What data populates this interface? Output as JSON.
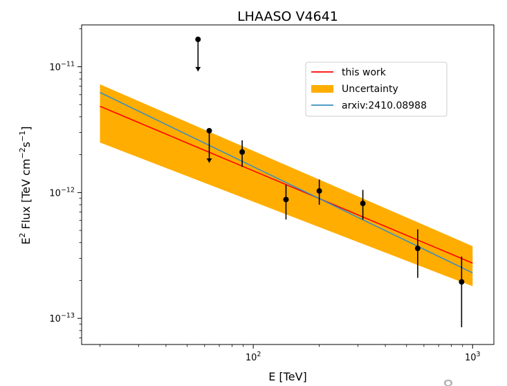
{
  "chart_data": {
    "type": "line",
    "title": "LHAASO V4641",
    "xlabel": "E [TeV]",
    "ylabel_main": "E",
    "ylabel_tail": "Flux [TeV cm",
    "ylabel_units_end": "]",
    "xscale": "log",
    "yscale": "log",
    "xlim": [
      16.5,
      1250
    ],
    "ylim": [
      6.2e-14,
      2.15e-11
    ],
    "x_ticks": [
      {
        "value": 100,
        "base": "10",
        "exp": "2"
      },
      {
        "value": 1000,
        "base": "10",
        "exp": "3"
      }
    ],
    "y_ticks": [
      {
        "value": 1e-11,
        "base": "10",
        "exp": "−11"
      },
      {
        "value": 1e-12,
        "base": "10",
        "exp": "−12"
      },
      {
        "value": 1e-13,
        "base": "10",
        "exp": "−13"
      }
    ],
    "grid": false,
    "legend_position": "upper-right",
    "series": [
      {
        "name": "this work",
        "kind": "line",
        "color": "#ff0000",
        "x": [
          20,
          1000
        ],
        "y": [
          4.85e-12,
          2.75e-13
        ]
      },
      {
        "name": "Uncertainty",
        "kind": "band",
        "color": "#ffad00",
        "x": [
          20,
          1000
        ],
        "y_upper": [
          7.25e-12,
          3.75e-13
        ],
        "y_lower": [
          2.5e-12,
          1.8e-13
        ]
      },
      {
        "name": "arxiv:2410.08988",
        "kind": "line",
        "color": "#3a8fbf",
        "x": [
          20,
          1000
        ],
        "y": [
          6.25e-12,
          2.3e-13
        ]
      }
    ],
    "points": [
      {
        "x": 56,
        "y": 1.65e-11,
        "upper_limit": true
      },
      {
        "x": 63,
        "y": 3.1e-12,
        "upper_limit": true
      },
      {
        "x": 89,
        "y": 2.1e-12,
        "yerr_low": 1.6e-12,
        "yerr_high": 2.6e-12
      },
      {
        "x": 141,
        "y": 8.8e-13,
        "yerr_low": 6.1e-13,
        "yerr_high": 1.15e-12
      },
      {
        "x": 200,
        "y": 1.03e-12,
        "yerr_low": 8e-13,
        "yerr_high": 1.27e-12
      },
      {
        "x": 316,
        "y": 8.2e-13,
        "yerr_low": 6.1e-13,
        "yerr_high": 1.05e-12
      },
      {
        "x": 562,
        "y": 3.6e-13,
        "yerr_low": 2.1e-13,
        "yerr_high": 5.1e-13
      },
      {
        "x": 891,
        "y": 1.95e-13,
        "yerr_low": 8.5e-14,
        "yerr_high": 3.1e-13
      }
    ],
    "point_color": "#000000",
    "corner_mark": "8"
  }
}
